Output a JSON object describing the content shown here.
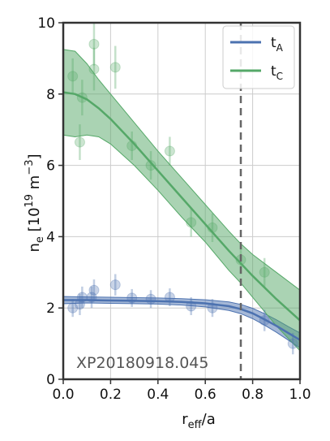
{
  "chart_data": {
    "type": "line",
    "xlim": [
      0.0,
      1.0
    ],
    "ylim": [
      0,
      10
    ],
    "xticks": [
      "0.0",
      "0.2",
      "0.4",
      "0.6",
      "0.8",
      "1.0"
    ],
    "yticks": [
      "0",
      "2",
      "4",
      "6",
      "8",
      "10"
    ],
    "xlabel": {
      "main": "r",
      "sub": "eff",
      "tail": "/a"
    },
    "ylabel": {
      "main": "n",
      "sub": "e",
      "mid": " [10",
      "sup1": "19",
      "mid2": " m",
      "sup2": "−3",
      "tail": "]"
    },
    "grid": true,
    "legend_position": "top-right",
    "annotation": "XP20180918.045",
    "vline_x": 0.75,
    "series": [
      {
        "name": {
          "main": "t",
          "sub": "A"
        },
        "color": "#4c72b0",
        "fit": {
          "x": [
            0.0,
            0.1,
            0.2,
            0.3,
            0.4,
            0.5,
            0.6,
            0.7,
            0.75,
            0.8,
            0.85,
            0.9,
            0.95,
            1.0
          ],
          "y": [
            2.22,
            2.22,
            2.21,
            2.2,
            2.19,
            2.17,
            2.13,
            2.05,
            1.97,
            1.85,
            1.68,
            1.5,
            1.3,
            1.1
          ],
          "lower": [
            2.12,
            2.14,
            2.13,
            2.12,
            2.11,
            2.08,
            2.03,
            1.93,
            1.84,
            1.7,
            1.52,
            1.32,
            1.1,
            0.88
          ],
          "upper": [
            2.32,
            2.31,
            2.3,
            2.29,
            2.28,
            2.26,
            2.23,
            2.17,
            2.1,
            1.99,
            1.84,
            1.67,
            1.48,
            1.3
          ]
        },
        "points": [
          {
            "x": 0.04,
            "y": 2.0,
            "err": 0.25
          },
          {
            "x": 0.07,
            "y": 2.1,
            "err": 0.3
          },
          {
            "x": 0.08,
            "y": 2.3,
            "err": 0.3
          },
          {
            "x": 0.12,
            "y": 2.3,
            "err": 0.3
          },
          {
            "x": 0.13,
            "y": 2.5,
            "err": 0.3
          },
          {
            "x": 0.22,
            "y": 2.65,
            "err": 0.3
          },
          {
            "x": 0.29,
            "y": 2.28,
            "err": 0.25
          },
          {
            "x": 0.37,
            "y": 2.25,
            "err": 0.25
          },
          {
            "x": 0.45,
            "y": 2.3,
            "err": 0.25
          },
          {
            "x": 0.54,
            "y": 2.05,
            "err": 0.25
          },
          {
            "x": 0.63,
            "y": 2.0,
            "err": 0.25
          },
          {
            "x": 0.85,
            "y": 1.65,
            "err": 0.3
          },
          {
            "x": 0.97,
            "y": 1.0,
            "err": 0.3
          }
        ]
      },
      {
        "name": {
          "main": "t",
          "sub": "C"
        },
        "color": "#55a868",
        "fit": {
          "x": [
            0.0,
            0.05,
            0.1,
            0.15,
            0.2,
            0.3,
            0.4,
            0.5,
            0.6,
            0.7,
            0.75,
            0.8,
            0.9,
            1.0
          ],
          "y": [
            8.05,
            8.0,
            7.85,
            7.6,
            7.3,
            6.6,
            5.85,
            5.1,
            4.35,
            3.6,
            3.25,
            2.9,
            2.25,
            1.65
          ],
          "lower": [
            6.85,
            6.8,
            6.85,
            6.8,
            6.6,
            6.0,
            5.3,
            4.55,
            3.85,
            3.05,
            2.7,
            2.3,
            1.5,
            0.8
          ],
          "upper": [
            9.25,
            9.2,
            8.85,
            8.4,
            8.0,
            7.2,
            6.4,
            5.65,
            4.9,
            4.15,
            3.8,
            3.5,
            3.0,
            2.5
          ]
        },
        "points": [
          {
            "x": 0.04,
            "y": 8.5,
            "err": 0.5
          },
          {
            "x": 0.07,
            "y": 6.65,
            "err": 0.5
          },
          {
            "x": 0.08,
            "y": 7.9,
            "err": 0.5
          },
          {
            "x": 0.13,
            "y": 9.4,
            "err": 0.6
          },
          {
            "x": 0.13,
            "y": 8.7,
            "err": 0.6
          },
          {
            "x": 0.22,
            "y": 8.75,
            "err": 0.6
          },
          {
            "x": 0.29,
            "y": 6.55,
            "err": 0.4
          },
          {
            "x": 0.37,
            "y": 6.0,
            "err": 0.4
          },
          {
            "x": 0.45,
            "y": 6.4,
            "err": 0.4
          },
          {
            "x": 0.54,
            "y": 4.4,
            "err": 0.4
          },
          {
            "x": 0.63,
            "y": 4.25,
            "err": 0.4
          },
          {
            "x": 0.75,
            "y": 3.35,
            "err": 0.4
          },
          {
            "x": 0.85,
            "y": 3.0,
            "err": 0.4
          }
        ]
      }
    ]
  }
}
